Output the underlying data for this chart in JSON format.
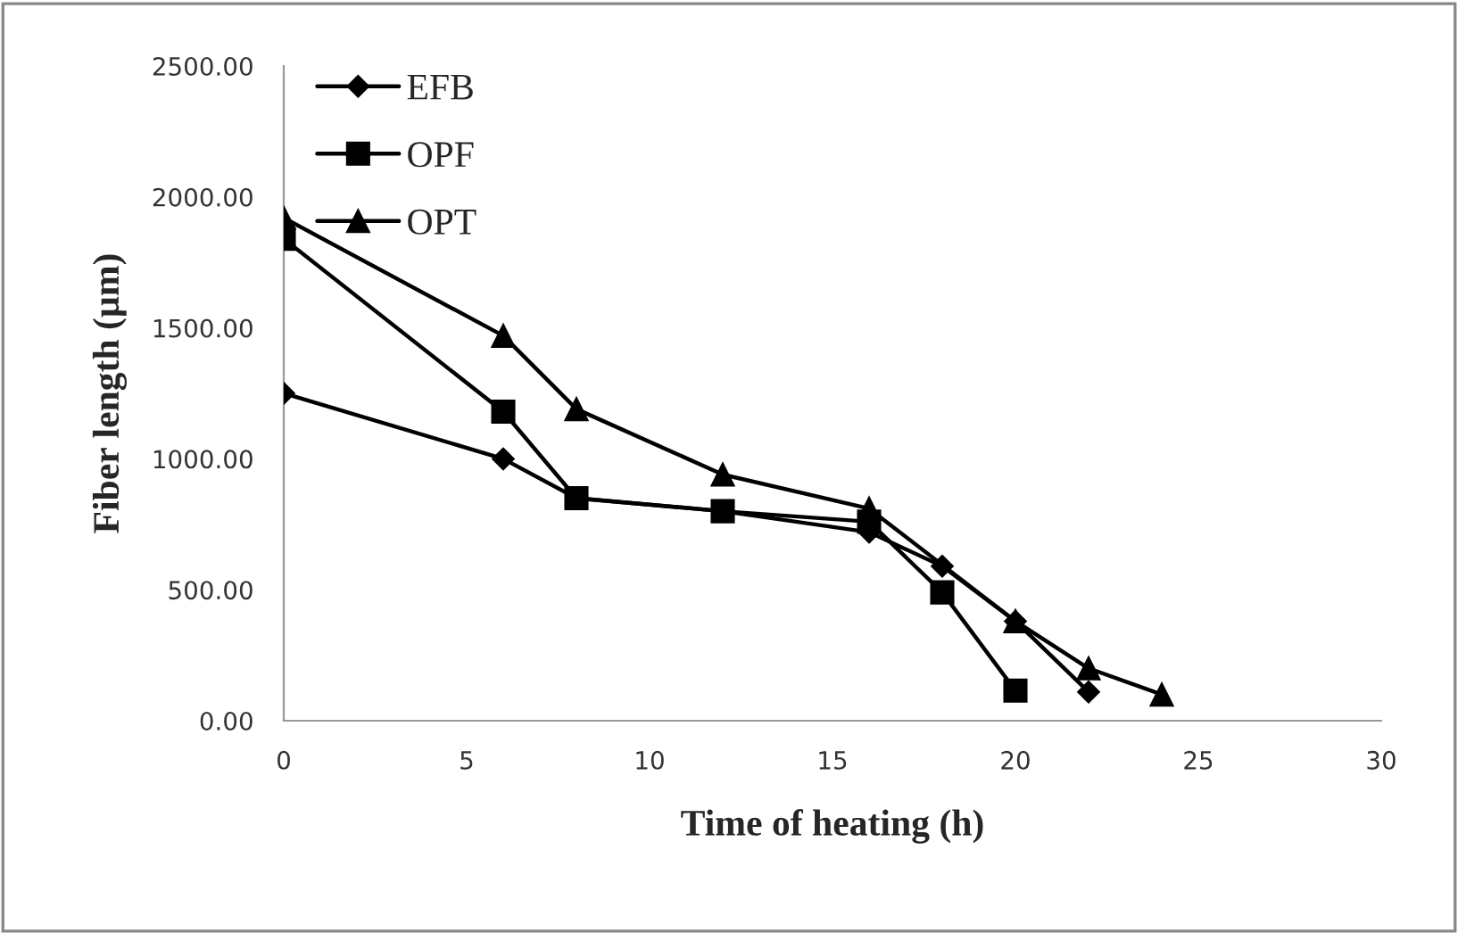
{
  "chart_data": {
    "type": "line",
    "xlabel": "Time of heating (h)",
    "ylabel": "Fiber length (µm)",
    "series": [
      {
        "name": "EFB",
        "color": "#000000",
        "marker": "diamond",
        "x": [
          0,
          6,
          8,
          12,
          16,
          18,
          20,
          22
        ],
        "values": [
          1250,
          1000,
          850,
          800,
          720,
          590,
          380,
          110
        ]
      },
      {
        "name": "OPF",
        "color": "#000000",
        "marker": "square",
        "x": [
          0,
          6,
          8,
          12,
          16,
          18,
          20
        ],
        "values": [
          1840,
          1180,
          850,
          800,
          760,
          490,
          115
        ]
      },
      {
        "name": "OPT",
        "color": "#000000",
        "marker": "triangle",
        "x": [
          0,
          6,
          8,
          12,
          16,
          20,
          22,
          24
        ],
        "values": [
          1920,
          1470,
          1190,
          940,
          810,
          380,
          200,
          100
        ]
      }
    ],
    "xlim": [
      0,
      30
    ],
    "xticks": [
      0,
      5,
      10,
      15,
      20,
      25,
      30
    ],
    "ylim": [
      0,
      2500
    ],
    "yticks": [
      {
        "value": 0,
        "label": "0.00"
      },
      {
        "value": 500,
        "label": "500.00"
      },
      {
        "value": 1000,
        "label": "1000.00"
      },
      {
        "value": 1500,
        "label": "1500.00"
      },
      {
        "value": 2000,
        "label": "2000.00"
      },
      {
        "value": 2500,
        "label": "2500.00"
      }
    ],
    "grid": false,
    "legend": "top left",
    "line_style": "solid"
  }
}
